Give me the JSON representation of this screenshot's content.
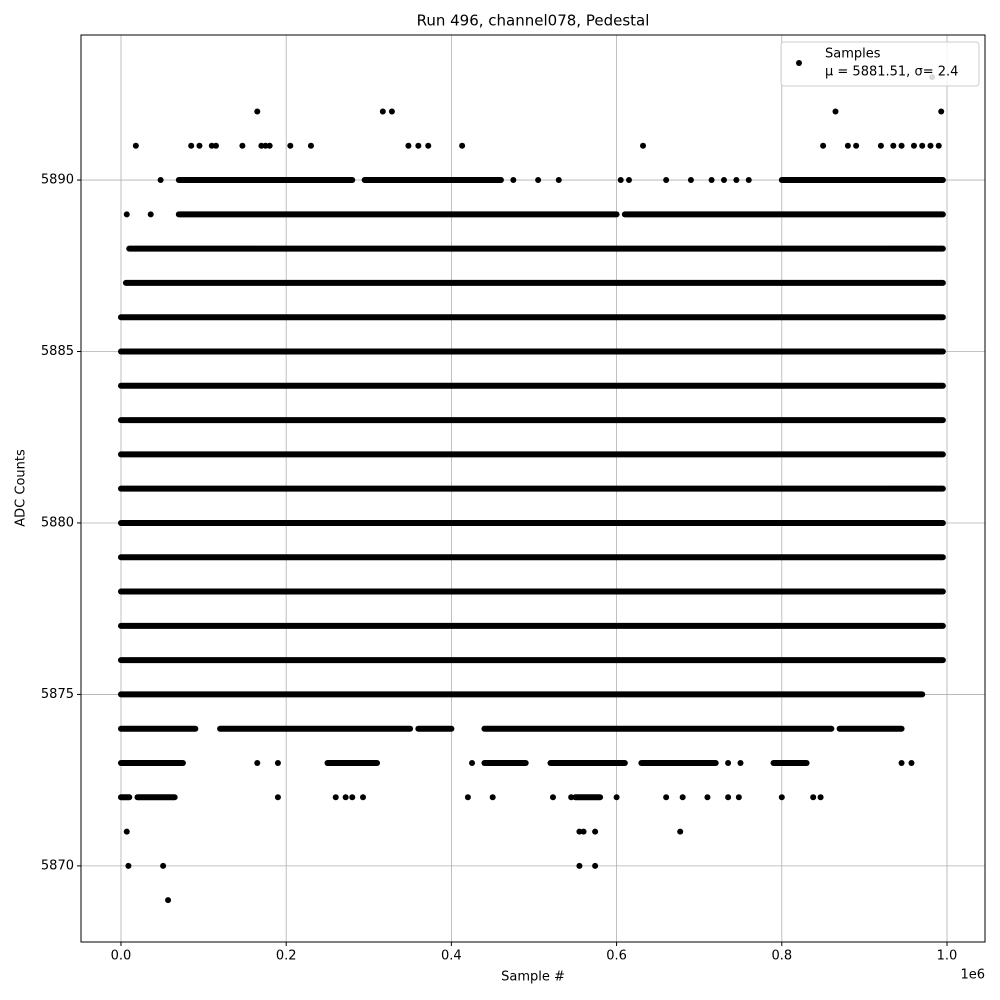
{
  "chart_data": {
    "type": "scatter",
    "title": "Run 496, channel078, Pedestal",
    "xlabel": "Sample #",
    "ylabel": "ADC Counts",
    "x_offset_label": "1e6",
    "xlim": [
      -48400,
      1046000
    ],
    "ylim": [
      5867.78,
      5894.23
    ],
    "xticks": [
      {
        "value": 0,
        "label": "0.0"
      },
      {
        "value": 200000,
        "label": "0.2"
      },
      {
        "value": 400000,
        "label": "0.4"
      },
      {
        "value": 600000,
        "label": "0.6"
      },
      {
        "value": 800000,
        "label": "0.8"
      },
      {
        "value": 1000000,
        "label": "1.0"
      }
    ],
    "yticks": [
      5870,
      5875,
      5880,
      5885,
      5890
    ],
    "grid": true,
    "legend": "upper right",
    "series": [
      {
        "name": "Samples",
        "stats_label": "μ = 5881.51, σ= 2.4",
        "color": "#000000",
        "x": [
          982000,
          165000,
          317000,
          328000,
          865000,
          993000,
          18000,
          85000,
          95000,
          110000,
          115000,
          147000,
          170000,
          175000,
          180000,
          205000,
          230000,
          348000,
          360000,
          372000,
          413000,
          632000,
          850000,
          880000,
          890000,
          920000,
          935000,
          945000,
          960000,
          970000,
          980000,
          990000,
          48000,
          475000,
          505000,
          530000,
          605000,
          615000,
          660000,
          690000,
          715000,
          730000,
          745000,
          760000,
          7000,
          36000,
          165000,
          190000,
          425000,
          735000,
          750000,
          945000,
          957000,
          190000,
          260000,
          272000,
          280000,
          293000,
          420000,
          450000,
          523000,
          545000,
          600000,
          660000,
          680000,
          710000,
          735000,
          748000,
          800000,
          838000,
          847000,
          7000,
          555000,
          560000,
          574000,
          677000,
          9000,
          51000,
          555000,
          574000,
          57000
        ],
        "y": [
          5893,
          5892,
          5892,
          5892,
          5892,
          5892,
          5891,
          5891,
          5891,
          5891,
          5891,
          5891,
          5891,
          5891,
          5891,
          5891,
          5891,
          5891,
          5891,
          5891,
          5891,
          5891,
          5891,
          5891,
          5891,
          5891,
          5891,
          5891,
          5891,
          5891,
          5891,
          5891,
          5890,
          5890,
          5890,
          5890,
          5890,
          5890,
          5890,
          5890,
          5890,
          5890,
          5890,
          5890,
          5889,
          5889,
          5873,
          5873,
          5873,
          5873,
          5873,
          5873,
          5873,
          5872,
          5872,
          5872,
          5872,
          5872,
          5872,
          5872,
          5872,
          5872,
          5872,
          5872,
          5872,
          5872,
          5872,
          5872,
          5872,
          5872,
          5872,
          5871,
          5871,
          5871,
          5871,
          5871,
          5870,
          5870,
          5870,
          5870,
          5869
        ],
        "segments": [
          {
            "y": 5890,
            "x": [
              70000,
              280000
            ]
          },
          {
            "y": 5890,
            "x": [
              295000,
              460000
            ]
          },
          {
            "y": 5890,
            "x": [
              800000,
              995000
            ]
          },
          {
            "y": 5889,
            "x": [
              70000,
              600000
            ]
          },
          {
            "y": 5889,
            "x": [
              610000,
              995000
            ]
          },
          {
            "y": 5888,
            "x": [
              10000,
              995000
            ]
          },
          {
            "y": 5887,
            "x": [
              6000,
              995000
            ]
          },
          {
            "y": 5886,
            "x": [
              0,
              995000
            ]
          },
          {
            "y": 5885,
            "x": [
              0,
              995000
            ]
          },
          {
            "y": 5884,
            "x": [
              0,
              995000
            ]
          },
          {
            "y": 5883,
            "x": [
              0,
              995000
            ]
          },
          {
            "y": 5882,
            "x": [
              0,
              995000
            ]
          },
          {
            "y": 5881,
            "x": [
              0,
              995000
            ]
          },
          {
            "y": 5880,
            "x": [
              0,
              995000
            ]
          },
          {
            "y": 5879,
            "x": [
              0,
              995000
            ]
          },
          {
            "y": 5878,
            "x": [
              0,
              995000
            ]
          },
          {
            "y": 5877,
            "x": [
              0,
              995000
            ]
          },
          {
            "y": 5876,
            "x": [
              0,
              995000
            ]
          },
          {
            "y": 5875,
            "x": [
              0,
              970000
            ]
          },
          {
            "y": 5874,
            "x": [
              0,
              90000
            ]
          },
          {
            "y": 5874,
            "x": [
              120000,
              350000
            ]
          },
          {
            "y": 5874,
            "x": [
              360000,
              400000
            ]
          },
          {
            "y": 5874,
            "x": [
              440000,
              860000
            ]
          },
          {
            "y": 5874,
            "x": [
              870000,
              945000
            ]
          },
          {
            "y": 5873,
            "x": [
              0,
              75000
            ]
          },
          {
            "y": 5873,
            "x": [
              250000,
              310000
            ]
          },
          {
            "y": 5873,
            "x": [
              440000,
              490000
            ]
          },
          {
            "y": 5873,
            "x": [
              520000,
              610000
            ]
          },
          {
            "y": 5873,
            "x": [
              630000,
              720000
            ]
          },
          {
            "y": 5873,
            "x": [
              790000,
              830000
            ]
          },
          {
            "y": 5872,
            "x": [
              0,
              10000
            ]
          },
          {
            "y": 5872,
            "x": [
              20000,
              65000
            ]
          },
          {
            "y": 5872,
            "x": [
              550000,
              580000
            ]
          }
        ]
      }
    ]
  }
}
